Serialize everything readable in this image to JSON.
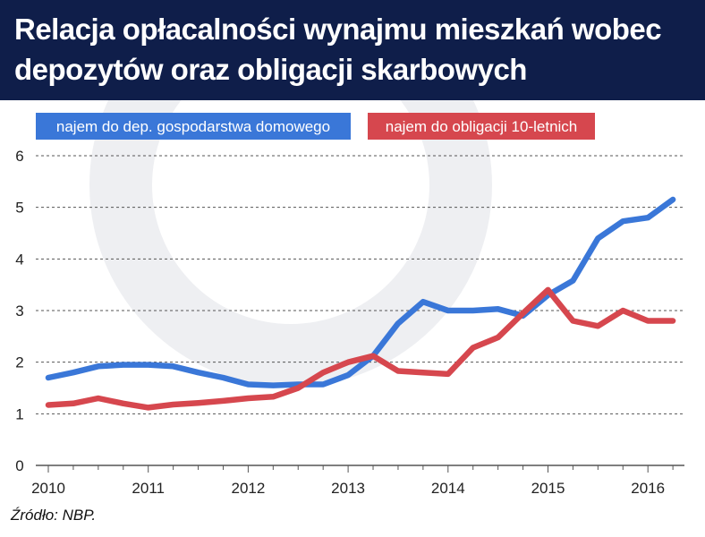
{
  "header": {
    "title_line1": "Relacja opłacalności wynajmu mieszkań wobec",
    "title_line2": "depozytów oraz obligacji skarbowych"
  },
  "source": "Źródło: NBP.",
  "colors": {
    "header_bg": "#0f1e4a",
    "series_blue": "#3a77d8",
    "series_red": "#d6474e"
  },
  "chart_data": {
    "type": "line",
    "ylim": [
      0,
      6
    ],
    "y_ticks": [
      "0",
      "1",
      "2",
      "3",
      "4",
      "5",
      "6"
    ],
    "x_ticks": [
      "2010",
      "2011",
      "2012",
      "2013",
      "2014",
      "2015",
      "2016"
    ],
    "grid": "horizontal dashed",
    "legend": "top",
    "x": [
      2010.0,
      2010.25,
      2010.5,
      2010.75,
      2011.0,
      2011.25,
      2011.5,
      2011.75,
      2012.0,
      2012.25,
      2012.5,
      2012.75,
      2013.0,
      2013.25,
      2013.5,
      2013.75,
      2014.0,
      2014.25,
      2014.5,
      2014.75,
      2015.0,
      2015.25,
      2015.5,
      2015.75,
      2016.0,
      2016.25
    ],
    "series": [
      {
        "name": "najem do dep. gospodarstwa domowego",
        "color": "#3a77d8",
        "values": [
          1.7,
          1.8,
          1.92,
          1.95,
          1.95,
          1.92,
          1.8,
          1.7,
          1.57,
          1.55,
          1.57,
          1.57,
          1.75,
          2.12,
          2.75,
          3.17,
          3.0,
          3.0,
          3.03,
          2.9,
          3.3,
          3.58,
          4.4,
          4.73,
          4.8,
          5.15
        ]
      },
      {
        "name": "najem do obligacji 10-letnich",
        "color": "#d6474e",
        "values": [
          1.17,
          1.2,
          1.3,
          1.2,
          1.12,
          1.18,
          1.21,
          1.25,
          1.3,
          1.33,
          1.5,
          1.8,
          2.0,
          2.12,
          1.83,
          1.8,
          1.77,
          2.28,
          2.48,
          2.95,
          3.4,
          2.8,
          2.7,
          3.0,
          2.8,
          2.8
        ]
      }
    ]
  }
}
